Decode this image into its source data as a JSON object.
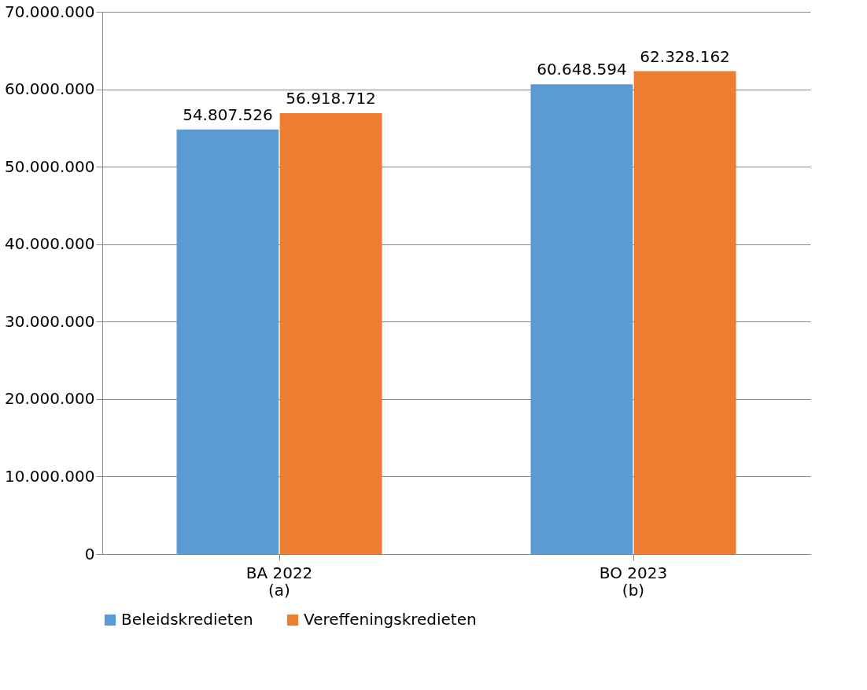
{
  "chart_data": {
    "type": "bar",
    "categories": [
      "BA 2022\n(a)",
      "BO 2023\n(b)"
    ],
    "series": [
      {
        "name": "Beleidskredieten",
        "color": "#5b9bd5",
        "values": [
          54807526,
          60648594
        ],
        "value_labels": [
          "54.807.526",
          "60.648.594"
        ]
      },
      {
        "name": "Vereffeningskredieten",
        "color": "#ed7d31",
        "values": [
          56918712,
          62328162
        ],
        "value_labels": [
          "56.918.712",
          "62.328.162"
        ]
      }
    ],
    "ylim": [
      0,
      70000000
    ],
    "yticks": [
      {
        "value": 0,
        "label": "0"
      },
      {
        "value": 10000000,
        "label": "10.000.000"
      },
      {
        "value": 20000000,
        "label": "20.000.000"
      },
      {
        "value": 30000000,
        "label": "30.000.000"
      },
      {
        "value": 40000000,
        "label": "40.000.000"
      },
      {
        "value": 50000000,
        "label": "50.000.000"
      },
      {
        "value": 60000000,
        "label": "60.000.000"
      },
      {
        "value": 70000000,
        "label": "70.000.000"
      }
    ],
    "grid": "y",
    "legend": "bottom"
  }
}
